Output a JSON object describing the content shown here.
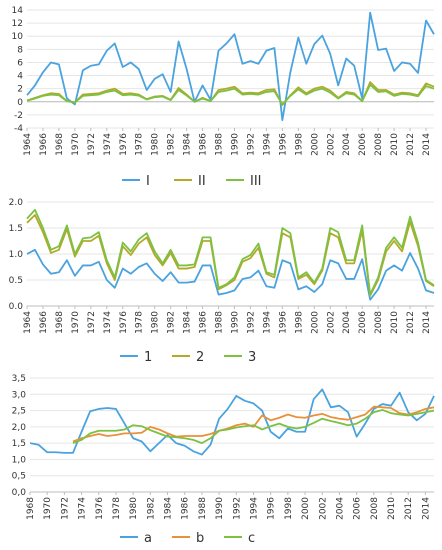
{
  "chart_data": [
    {
      "type": "line",
      "title": "",
      "xlabel": "",
      "ylabel": "",
      "x": [
        1964,
        1965,
        1966,
        1967,
        1968,
        1969,
        1970,
        1971,
        1972,
        1973,
        1974,
        1975,
        1976,
        1977,
        1978,
        1979,
        1980,
        1981,
        1982,
        1983,
        1984,
        1985,
        1986,
        1987,
        1988,
        1989,
        1990,
        1991,
        1992,
        1993,
        1994,
        1995,
        1996,
        1997,
        1998,
        1999,
        2000,
        2001,
        2002,
        2003,
        2004,
        2005,
        2006,
        2007,
        2008,
        2009,
        2010,
        2011,
        2012,
        2013,
        2014,
        2015
      ],
      "x_tick_labels": [
        "1964",
        "1966",
        "1968",
        "1970",
        "1972",
        "1974",
        "1976",
        "1978",
        "1980",
        "1982",
        "1984",
        "1986",
        "1988",
        "1990",
        "1992",
        "1994",
        "1996",
        "1998",
        "2000",
        "2002",
        "2004",
        "2006",
        "2008",
        "2010",
        "2012",
        "2014"
      ],
      "y_tick_labels": [
        "-4",
        "-2",
        "0",
        "2",
        "4",
        "6",
        "8",
        "10",
        "12",
        "14"
      ],
      "ylim": [
        -4,
        14
      ],
      "grid": true,
      "legend": "bottom",
      "series": [
        {
          "name": "I",
          "color": "#4aa3df",
          "values": [
            1.0,
            2.5,
            4.5,
            6.0,
            5.7,
            0.5,
            -0.4,
            4.8,
            5.5,
            5.7,
            7.8,
            8.9,
            5.3,
            6.0,
            5.0,
            1.8,
            3.5,
            4.2,
            1.5,
            9.2,
            5.0,
            0.0,
            2.5,
            0.3,
            7.8,
            8.9,
            10.3,
            5.8,
            6.2,
            5.8,
            7.8,
            8.2,
            -2.8,
            4.5,
            9.8,
            5.8,
            8.8,
            10.1,
            7.3,
            2.5,
            6.6,
            5.5,
            0.5,
            13.6,
            7.9,
            8.1,
            4.7,
            6.0,
            5.8,
            4.4,
            12.4,
            10.3
          ]
        },
        {
          "name": "II",
          "color": "#b5a92a",
          "values": [
            0.2,
            0.6,
            1.0,
            1.3,
            1.2,
            0.1,
            -0.1,
            1.1,
            1.2,
            1.3,
            1.7,
            2.0,
            1.2,
            1.3,
            1.1,
            0.4,
            0.8,
            0.9,
            0.3,
            2.1,
            1.1,
            0.0,
            0.6,
            0.1,
            1.8,
            2.0,
            2.3,
            1.3,
            1.4,
            1.3,
            1.8,
            1.9,
            -0.5,
            1.0,
            2.2,
            1.3,
            2.0,
            2.3,
            1.7,
            0.6,
            1.5,
            1.3,
            0.1,
            3.0,
            1.8,
            1.8,
            1.1,
            1.4,
            1.3,
            1.0,
            2.8,
            2.3
          ]
        },
        {
          "name": "III",
          "color": "#7cc142",
          "values": [
            0.15,
            0.5,
            0.9,
            1.1,
            1.0,
            0.1,
            -0.1,
            0.9,
            1.0,
            1.1,
            1.5,
            1.7,
            1.0,
            1.1,
            0.95,
            0.35,
            0.7,
            0.8,
            0.25,
            1.8,
            0.95,
            0.0,
            0.5,
            0.1,
            1.5,
            1.7,
            2.0,
            1.1,
            1.2,
            1.1,
            1.5,
            1.6,
            -0.4,
            0.9,
            1.9,
            1.1,
            1.7,
            2.0,
            1.4,
            0.5,
            1.3,
            1.1,
            0.1,
            2.6,
            1.5,
            1.6,
            0.9,
            1.2,
            1.1,
            0.85,
            2.4,
            2.0
          ]
        }
      ]
    },
    {
      "type": "line",
      "title": "",
      "xlabel": "",
      "ylabel": "",
      "x": [
        1964,
        1965,
        1966,
        1967,
        1968,
        1969,
        1970,
        1971,
        1972,
        1973,
        1974,
        1975,
        1976,
        1977,
        1978,
        1979,
        1980,
        1981,
        1982,
        1983,
        1984,
        1985,
        1986,
        1987,
        1988,
        1989,
        1990,
        1991,
        1992,
        1993,
        1994,
        1995,
        1996,
        1997,
        1998,
        1999,
        2000,
        2001,
        2002,
        2003,
        2004,
        2005,
        2006,
        2007,
        2008,
        2009,
        2010,
        2011,
        2012,
        2013,
        2014,
        2015
      ],
      "x_tick_labels": [
        "1964",
        "1966",
        "1968",
        "1970",
        "1972",
        "1974",
        "1976",
        "1978",
        "1980",
        "1982",
        "1984",
        "1986",
        "1988",
        "1990",
        "1992",
        "1994",
        "1996",
        "1998",
        "2000",
        "2002",
        "2004",
        "2006",
        "2008",
        "2010",
        "2012",
        "2014"
      ],
      "y_tick_labels": [
        "0.0",
        "0.5",
        "1.0",
        "1.5",
        "2.0"
      ],
      "ylim": [
        0,
        2.0
      ],
      "grid": true,
      "legend": "bottom",
      "series": [
        {
          "name": "1",
          "color": "#4aa3df",
          "values": [
            1.0,
            1.08,
            0.8,
            0.62,
            0.65,
            0.88,
            0.58,
            0.78,
            0.78,
            0.85,
            0.5,
            0.35,
            0.72,
            0.62,
            0.75,
            0.82,
            0.62,
            0.48,
            0.65,
            0.45,
            0.45,
            0.47,
            0.78,
            0.78,
            0.22,
            0.25,
            0.3,
            0.52,
            0.55,
            0.68,
            0.38,
            0.35,
            0.88,
            0.82,
            0.32,
            0.38,
            0.27,
            0.42,
            0.88,
            0.82,
            0.52,
            0.52,
            0.9,
            0.12,
            0.32,
            0.68,
            0.78,
            0.68,
            1.02,
            0.72,
            0.3,
            0.25
          ]
        },
        {
          "name": "2",
          "color": "#b5a92a",
          "values": [
            1.6,
            1.75,
            1.42,
            1.02,
            1.08,
            1.48,
            0.95,
            1.25,
            1.25,
            1.35,
            0.82,
            0.5,
            1.15,
            0.98,
            1.2,
            1.32,
            0.98,
            0.78,
            1.02,
            0.72,
            0.72,
            0.75,
            1.25,
            1.25,
            0.32,
            0.4,
            0.5,
            0.85,
            0.92,
            1.12,
            0.62,
            0.55,
            1.4,
            1.32,
            0.52,
            0.6,
            0.42,
            0.68,
            1.4,
            1.32,
            0.82,
            0.82,
            1.45,
            0.2,
            0.5,
            1.05,
            1.25,
            1.05,
            1.62,
            1.15,
            0.48,
            0.38
          ]
        },
        {
          "name": "3",
          "color": "#7cc142",
          "values": [
            1.68,
            1.85,
            1.5,
            1.08,
            1.15,
            1.55,
            1.0,
            1.3,
            1.32,
            1.42,
            0.88,
            0.55,
            1.22,
            1.05,
            1.28,
            1.4,
            1.05,
            0.82,
            1.08,
            0.78,
            0.78,
            0.8,
            1.32,
            1.32,
            0.35,
            0.42,
            0.55,
            0.9,
            0.98,
            1.2,
            0.65,
            0.6,
            1.5,
            1.4,
            0.55,
            0.65,
            0.45,
            0.72,
            1.5,
            1.42,
            0.88,
            0.88,
            1.55,
            0.22,
            0.55,
            1.12,
            1.32,
            1.12,
            1.72,
            1.22,
            0.5,
            0.4
          ]
        }
      ]
    },
    {
      "type": "line",
      "title": "",
      "xlabel": "",
      "ylabel": "",
      "x": [
        1968,
        1969,
        1970,
        1971,
        1972,
        1973,
        1974,
        1975,
        1976,
        1977,
        1978,
        1979,
        1980,
        1981,
        1982,
        1983,
        1984,
        1985,
        1986,
        1987,
        1988,
        1989,
        1990,
        1991,
        1992,
        1993,
        1994,
        1995,
        1996,
        1997,
        1998,
        1999,
        2000,
        2001,
        2002,
        2003,
        2004,
        2005,
        2006,
        2007,
        2008,
        2009,
        2010,
        2011,
        2012,
        2013,
        2014,
        2015
      ],
      "x_tick_labels": [
        "1968",
        "1970",
        "1972",
        "1974",
        "1976",
        "1978",
        "1980",
        "1982",
        "1984",
        "1986",
        "1988",
        "1990",
        "1992",
        "1994",
        "1996",
        "1998",
        "2000",
        "2002",
        "2004",
        "2006",
        "2008",
        "2010",
        "2012",
        "2014"
      ],
      "y_tick_labels": [
        "0,0",
        "0,5",
        "1,0",
        "1,5",
        "2,0",
        "2,5",
        "3,0",
        "3,5"
      ],
      "ylim": [
        0,
        3.5
      ],
      "grid": true,
      "legend": "bottom",
      "series": [
        {
          "name": "a",
          "color": "#4aa3df",
          "values": [
            1.5,
            1.45,
            1.22,
            1.22,
            1.2,
            1.2,
            1.85,
            2.48,
            2.55,
            2.58,
            2.55,
            2.1,
            1.65,
            1.55,
            1.25,
            1.5,
            1.75,
            1.5,
            1.42,
            1.25,
            1.15,
            1.45,
            2.25,
            2.55,
            2.95,
            2.8,
            2.72,
            2.5,
            1.85,
            1.65,
            1.95,
            1.85,
            1.85,
            2.85,
            3.15,
            2.6,
            2.65,
            2.45,
            1.7,
            2.1,
            2.55,
            2.7,
            2.65,
            3.05,
            2.45,
            2.2,
            2.4,
            2.95
          ]
        },
        {
          "name": "b",
          "color": "#e8913b",
          "values": [
            null,
            null,
            null,
            null,
            null,
            1.55,
            1.65,
            1.72,
            1.78,
            1.72,
            1.75,
            1.8,
            1.8,
            1.82,
            2.0,
            1.92,
            1.8,
            1.7,
            1.72,
            1.72,
            1.72,
            1.78,
            1.88,
            1.95,
            2.05,
            2.1,
            2.0,
            2.35,
            2.2,
            2.28,
            2.38,
            2.3,
            2.28,
            2.35,
            2.4,
            2.3,
            2.25,
            2.22,
            2.3,
            2.38,
            2.62,
            2.6,
            2.58,
            2.42,
            2.38,
            2.45,
            2.55,
            2.6
          ]
        },
        {
          "name": "c",
          "color": "#7cc142",
          "values": [
            null,
            null,
            null,
            null,
            null,
            1.5,
            1.6,
            1.8,
            1.88,
            1.88,
            1.88,
            1.92,
            2.05,
            2.02,
            1.9,
            1.8,
            1.7,
            1.68,
            1.65,
            1.6,
            1.5,
            1.65,
            1.88,
            1.92,
            1.98,
            2.02,
            2.05,
            1.92,
            2.02,
            2.1,
            2.0,
            1.95,
            2.0,
            2.12,
            2.25,
            2.18,
            2.12,
            2.05,
            2.1,
            2.25,
            2.45,
            2.52,
            2.42,
            2.38,
            2.35,
            2.4,
            2.45,
            2.5
          ]
        }
      ]
    }
  ]
}
